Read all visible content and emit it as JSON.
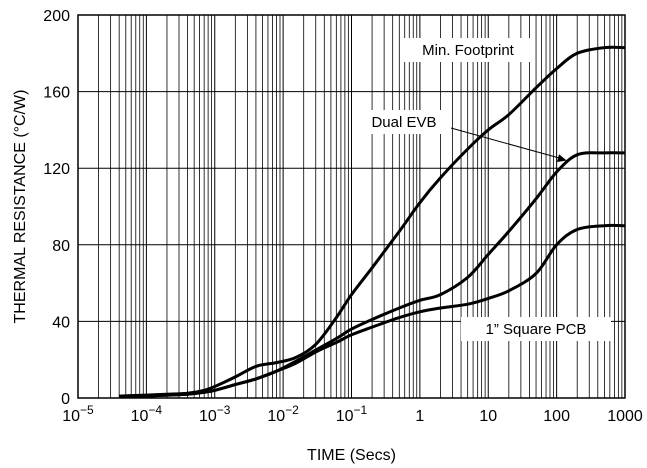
{
  "chart_data": {
    "type": "line",
    "title": "",
    "xlabel": "TIME (Secs)",
    "ylabel": "THERMAL RESISTANCE (°C/W)",
    "xscale": "log",
    "xlim": [
      1e-05,
      1000
    ],
    "ylim": [
      0,
      200
    ],
    "grid": true,
    "x_ticks": [
      {
        "value": 1e-05,
        "base": "10",
        "exp": "−5"
      },
      {
        "value": 0.0001,
        "base": "10",
        "exp": "−4"
      },
      {
        "value": 0.001,
        "base": "10",
        "exp": "−3"
      },
      {
        "value": 0.01,
        "base": "10",
        "exp": "−2"
      },
      {
        "value": 0.1,
        "base": "10",
        "exp": "−1"
      },
      {
        "value": 1,
        "label": "1"
      },
      {
        "value": 10,
        "label": "10"
      },
      {
        "value": 100,
        "label": "100"
      },
      {
        "value": 1000,
        "label": "1000"
      }
    ],
    "y_ticks": [
      {
        "value": 0,
        "label": "0"
      },
      {
        "value": 40,
        "label": "40"
      },
      {
        "value": 80,
        "label": "80"
      },
      {
        "value": 120,
        "label": "120"
      },
      {
        "value": 160,
        "label": "160"
      },
      {
        "value": 200,
        "label": "200"
      }
    ],
    "series": [
      {
        "name": "Min. Footprint",
        "x": [
          4e-05,
          0.0001,
          0.0002,
          0.0004,
          0.0007,
          0.001,
          0.002,
          0.004,
          0.008,
          0.015,
          0.03,
          0.06,
          0.1,
          0.2,
          0.5,
          1,
          2,
          5,
          10,
          20,
          50,
          100,
          200,
          500,
          1000
        ],
        "values": [
          1,
          1.5,
          2,
          2.5,
          4,
          6,
          11,
          16.5,
          18.5,
          21,
          28,
          42,
          54,
          68,
          87,
          102,
          115,
          130,
          140,
          148,
          162,
          172,
          180,
          183,
          183
        ]
      },
      {
        "name": "Dual EVB",
        "x": [
          4e-05,
          0.0001,
          0.0002,
          0.0004,
          0.0007,
          0.001,
          0.002,
          0.004,
          0.008,
          0.015,
          0.03,
          0.06,
          0.1,
          0.2,
          0.5,
          1,
          2,
          5,
          10,
          20,
          50,
          100,
          200,
          500,
          1000
        ],
        "values": [
          0.5,
          1,
          1.5,
          2,
          3,
          4,
          7,
          10,
          14,
          19,
          25,
          31,
          36,
          41,
          47,
          51,
          54,
          63,
          75,
          87,
          104,
          118,
          127,
          128,
          128
        ]
      },
      {
        "name": "1” Square PCB",
        "x": [
          4e-05,
          0.0001,
          0.0002,
          0.0004,
          0.0007,
          0.001,
          0.002,
          0.004,
          0.008,
          0.015,
          0.03,
          0.06,
          0.1,
          0.2,
          0.5,
          1,
          2,
          5,
          10,
          20,
          50,
          100,
          200,
          500,
          1000
        ],
        "values": [
          0.5,
          1,
          1.5,
          2,
          3,
          4,
          7,
          10,
          14,
          18,
          24,
          29,
          33,
          37,
          42,
          45,
          47,
          49,
          52,
          56,
          65,
          80,
          88,
          90,
          90
        ]
      }
    ],
    "legend": [
      {
        "label": "Min. Footprint",
        "series": 0
      },
      {
        "label": "Dual EVB",
        "series": 1
      },
      {
        "label": "1” Square PCB",
        "series": 2
      }
    ]
  }
}
